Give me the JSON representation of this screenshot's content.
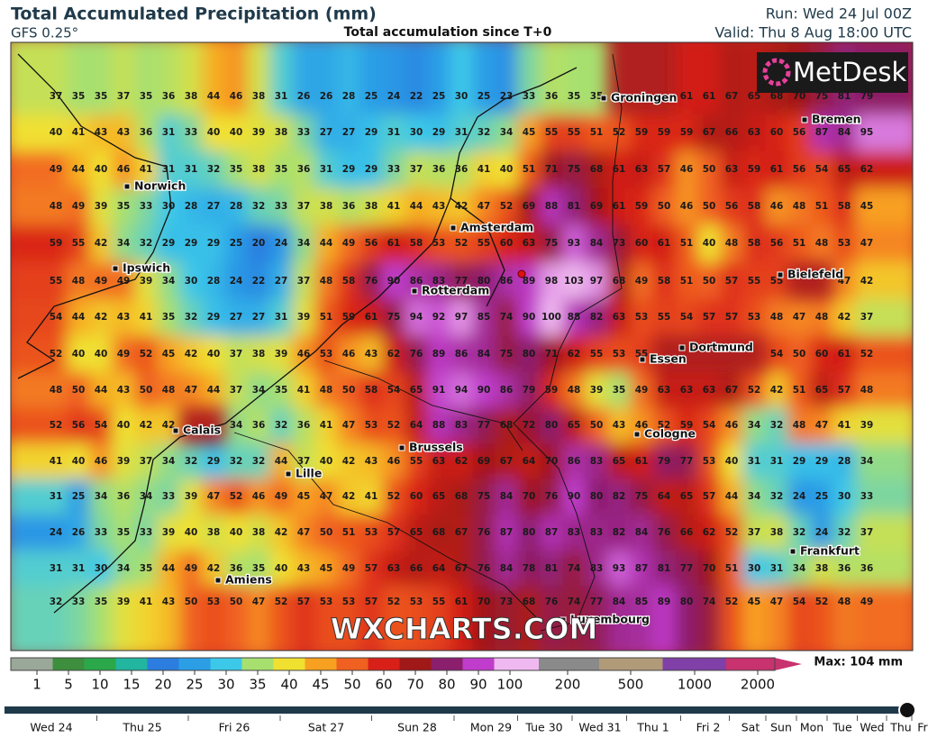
{
  "header": {
    "title": "Total Accumulated Precipitation (mm)",
    "model": "GFS 0.25°",
    "subtitle": "Total accumulation since T+0",
    "run": "Run: Wed 24 Jul 00Z",
    "valid": "Valid: Thu 8 Aug 18:00 UTC"
  },
  "logo": "MetDesk",
  "watermark": "WXCHARTS.COM",
  "map": {
    "values": [
      [
        37,
        35,
        35,
        37,
        35,
        36,
        38,
        44,
        46,
        38,
        31,
        26,
        26,
        28,
        25,
        24,
        22,
        25,
        30,
        25,
        23,
        33,
        36,
        35,
        35,
        null,
        null,
        null,
        61,
        61,
        67,
        65,
        68,
        70,
        75,
        81,
        79
      ],
      [
        40,
        41,
        43,
        43,
        36,
        31,
        33,
        40,
        40,
        39,
        38,
        33,
        27,
        27,
        29,
        31,
        30,
        29,
        31,
        32,
        34,
        45,
        55,
        55,
        51,
        52,
        59,
        59,
        59,
        67,
        66,
        63,
        60,
        56,
        87,
        84,
        95
      ],
      [
        49,
        44,
        40,
        46,
        41,
        31,
        31,
        32,
        35,
        38,
        35,
        36,
        31,
        29,
        29,
        33,
        37,
        36,
        36,
        41,
        40,
        51,
        71,
        75,
        68,
        61,
        63,
        57,
        46,
        50,
        63,
        59,
        61,
        56,
        54,
        65,
        62
      ],
      [
        48,
        49,
        39,
        35,
        33,
        30,
        28,
        27,
        28,
        32,
        33,
        37,
        38,
        36,
        38,
        41,
        44,
        43,
        42,
        47,
        52,
        69,
        88,
        81,
        69,
        61,
        59,
        50,
        46,
        50,
        56,
        58,
        46,
        48,
        51,
        58,
        45
      ],
      [
        59,
        55,
        42,
        34,
        32,
        29,
        29,
        29,
        25,
        20,
        24,
        34,
        44,
        49,
        56,
        61,
        58,
        53,
        52,
        55,
        60,
        63,
        75,
        93,
        84,
        73,
        60,
        61,
        51,
        40,
        48,
        58,
        56,
        51,
        48,
        53,
        47
      ],
      [
        55,
        48,
        49,
        49,
        39,
        34,
        30,
        28,
        24,
        22,
        27,
        37,
        48,
        58,
        76,
        90,
        86,
        83,
        77,
        80,
        86,
        89,
        98,
        103,
        97,
        68,
        49,
        58,
        51,
        50,
        57,
        55,
        55,
        null,
        null,
        47,
        42
      ],
      [
        54,
        44,
        42,
        43,
        41,
        35,
        32,
        29,
        27,
        27,
        31,
        39,
        51,
        59,
        61,
        75,
        94,
        92,
        97,
        85,
        74,
        90,
        100,
        88,
        82,
        63,
        53,
        55,
        54,
        57,
        57,
        53,
        48,
        47,
        48,
        42,
        37
      ],
      [
        52,
        40,
        40,
        49,
        52,
        45,
        42,
        40,
        37,
        38,
        39,
        46,
        53,
        46,
        43,
        62,
        76,
        89,
        86,
        84,
        75,
        80,
        71,
        62,
        55,
        53,
        55,
        null,
        null,
        null,
        null,
        null,
        54,
        50,
        60,
        61,
        52
      ],
      [
        48,
        50,
        44,
        43,
        50,
        48,
        47,
        44,
        37,
        34,
        35,
        41,
        48,
        50,
        58,
        54,
        65,
        91,
        94,
        90,
        86,
        79,
        59,
        48,
        39,
        35,
        49,
        63,
        63,
        63,
        67,
        52,
        42,
        51,
        65,
        57,
        48
      ],
      [
        52,
        56,
        54,
        40,
        42,
        42,
        null,
        null,
        34,
        36,
        32,
        36,
        41,
        47,
        53,
        52,
        64,
        88,
        83,
        77,
        68,
        72,
        80,
        65,
        50,
        43,
        46,
        52,
        59,
        54,
        46,
        34,
        32,
        48,
        47,
        41,
        39
      ],
      [
        41,
        40,
        46,
        39,
        37,
        34,
        32,
        29,
        32,
        32,
        44,
        37,
        40,
        42,
        43,
        46,
        55,
        63,
        62,
        69,
        67,
        64,
        70,
        86,
        83,
        65,
        61,
        79,
        77,
        53,
        40,
        31,
        31,
        29,
        29,
        28,
        34
      ],
      [
        31,
        25,
        34,
        36,
        34,
        33,
        39,
        47,
        52,
        46,
        49,
        45,
        47,
        42,
        41,
        52,
        60,
        65,
        68,
        75,
        84,
        70,
        76,
        90,
        80,
        82,
        75,
        64,
        65,
        57,
        44,
        34,
        32,
        24,
        25,
        30,
        33
      ],
      [
        24,
        26,
        33,
        35,
        33,
        39,
        40,
        38,
        40,
        38,
        42,
        47,
        50,
        51,
        53,
        57,
        65,
        68,
        67,
        76,
        87,
        80,
        87,
        83,
        83,
        82,
        84,
        76,
        66,
        62,
        52,
        37,
        38,
        32,
        24,
        32,
        37
      ],
      [
        31,
        31,
        30,
        34,
        35,
        44,
        49,
        42,
        36,
        35,
        40,
        43,
        45,
        49,
        57,
        63,
        66,
        64,
        67,
        76,
        84,
        78,
        81,
        74,
        83,
        93,
        87,
        81,
        77,
        70,
        51,
        30,
        31,
        34,
        38,
        36,
        36
      ],
      [
        32,
        33,
        35,
        39,
        41,
        43,
        50,
        53,
        50,
        47,
        52,
        57,
        53,
        53,
        57,
        52,
        53,
        55,
        61,
        70,
        73,
        68,
        76,
        74,
        77,
        84,
        85,
        89,
        80,
        74,
        52,
        45,
        47,
        54,
        52,
        48,
        49
      ]
    ]
  },
  "cities": [
    "Groningen",
    "Bremen",
    "Norwich",
    "Amsterdam",
    "Ipswich",
    "Rotterdam",
    "Bielefeld",
    "Dortmund",
    "Essen",
    "Calais",
    "Brussels",
    "Cologne",
    "Lille",
    "Frankfurt",
    "Amiens",
    "Luxembourg"
  ],
  "colorbar": {
    "ticks": [
      1,
      5,
      10,
      15,
      20,
      25,
      30,
      35,
      40,
      45,
      50,
      60,
      70,
      80,
      90,
      100,
      200,
      500,
      1000,
      2000
    ],
    "colors": [
      "#9aa89a",
      "#3d8f3d",
      "#2aa84a",
      "#22b5a0",
      "#2b7de0",
      "#2c9ee6",
      "#3cc8e8",
      "#a8e070",
      "#f0e030",
      "#f8a020",
      "#f06020",
      "#d82018",
      "#a01818",
      "#8c1e6e",
      "#c03ccc",
      "#f0b8f0",
      "#8a8a8a",
      "#b09a78",
      "#8040a8",
      "#c8326e"
    ],
    "max_label": "Max: 104 mm"
  },
  "timeline": [
    "Wed 24",
    "Thu 25",
    "Fri 26",
    "Sat 27",
    "Sun 28",
    "Mon 29",
    "Tue 30",
    "Wed 31",
    "Thu 1",
    "Fri 2",
    "Sat",
    "Sun",
    "Mon",
    "Tue",
    "Wed",
    "Thu",
    "Fr"
  ]
}
